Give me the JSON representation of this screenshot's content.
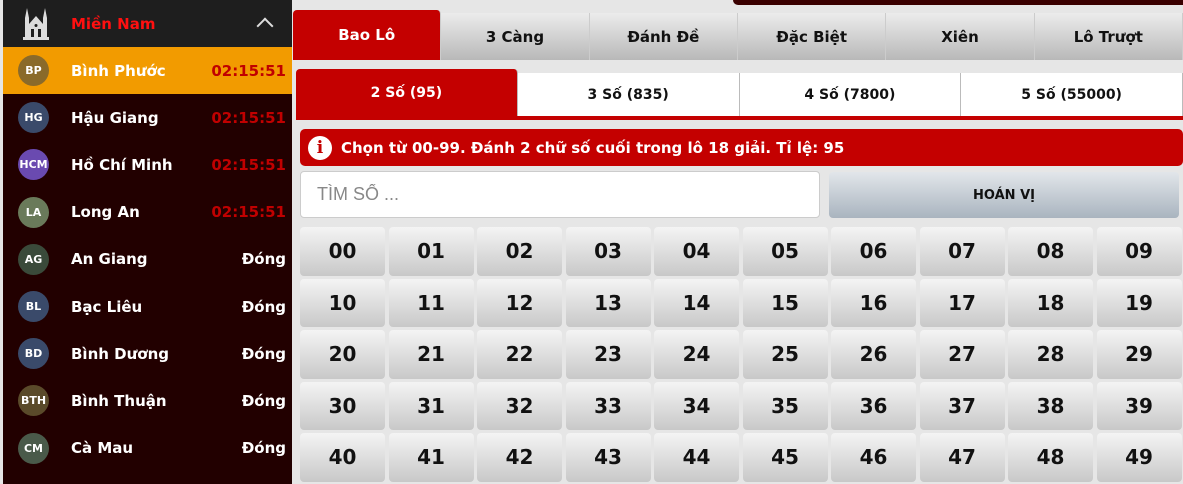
{
  "sidebar": {
    "region": "Miền Nam",
    "items": [
      {
        "abbr": "BP",
        "name": "Bình Phước",
        "status": "02:15:51",
        "color": "#8a6a2a",
        "active": true
      },
      {
        "abbr": "HG",
        "name": "Hậu Giang",
        "status": "02:15:51",
        "color": "#3a4a6a"
      },
      {
        "abbr": "HCM",
        "name": "Hồ Chí Minh",
        "status": "02:15:51",
        "color": "#6a4ab0"
      },
      {
        "abbr": "LA",
        "name": "Long An",
        "status": "02:15:51",
        "color": "#6a7a5a"
      },
      {
        "abbr": "AG",
        "name": "An Giang",
        "status": "Đóng",
        "color": "#3a4a3a"
      },
      {
        "abbr": "BL",
        "name": "Bạc Liêu",
        "status": "Đóng",
        "color": "#3a4a6a"
      },
      {
        "abbr": "BD",
        "name": "Bình Dương",
        "status": "Đóng",
        "color": "#3a4a6a"
      },
      {
        "abbr": "BTH",
        "name": "Bình Thuận",
        "status": "Đóng",
        "color": "#5a4a2a"
      },
      {
        "abbr": "CM",
        "name": "Cà Mau",
        "status": "Đóng",
        "color": "#4a5a4a"
      }
    ]
  },
  "tabs": [
    "Bao Lô",
    "3 Càng",
    "Đánh Đề",
    "Đặc Biệt",
    "Xiên",
    "Lô Trượt"
  ],
  "subtabs": [
    "2 Số (95)",
    "3 Số (835)",
    "4 Số (7800)",
    "5 Số (55000)"
  ],
  "info": "Chọn từ 00-99. Đánh 2 chữ số cuối trong lô 18 giải. Tỉ lệ: 95",
  "search": {
    "placeholder": "TÌM SỐ ...",
    "value": ""
  },
  "permute_label": "HOÁN VỊ",
  "numbers": [
    "00",
    "01",
    "02",
    "03",
    "04",
    "05",
    "06",
    "07",
    "08",
    "09",
    "10",
    "11",
    "12",
    "13",
    "14",
    "15",
    "16",
    "17",
    "18",
    "19",
    "20",
    "21",
    "22",
    "23",
    "24",
    "25",
    "26",
    "27",
    "28",
    "29",
    "30",
    "31",
    "32",
    "33",
    "34",
    "35",
    "36",
    "37",
    "38",
    "39",
    "40",
    "41",
    "42",
    "43",
    "44",
    "45",
    "46",
    "47",
    "48",
    "49"
  ]
}
